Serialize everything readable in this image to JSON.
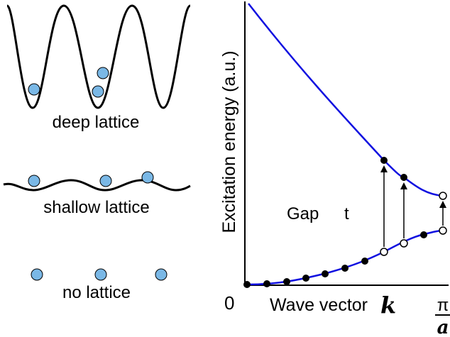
{
  "lattices": [
    {
      "label": "deep lattice",
      "atom_count": 3
    },
    {
      "label": "shallow lattice",
      "atom_count": 3
    },
    {
      "label": "no lattice",
      "atom_count": 3
    }
  ],
  "plot": {
    "ylabel": "Excitation energy (a.u.)",
    "xlabel": "Wave vector",
    "k_symbol": "k",
    "origin_label": "0",
    "pi_label": "π",
    "a_label": "a",
    "gap_label": "Gap",
    "t_label": "t"
  },
  "colors": {
    "atom_fill": "#7ab8e6",
    "curve": "#1010e0",
    "ink": "#000000"
  }
}
